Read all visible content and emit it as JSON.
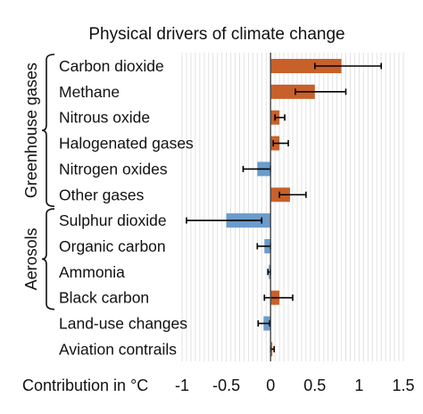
{
  "chart_data": {
    "type": "bar",
    "orientation": "horizontal",
    "title": "Physical drivers of climate change",
    "xlabel": "Contribution in °C",
    "xlim": [
      -1,
      1.5
    ],
    "xticks": [
      -1,
      -0.5,
      0,
      0.5,
      1,
      1.5
    ],
    "xtick_labels": [
      "-1",
      "-0.5",
      "0",
      "0.5",
      "1",
      "1.5"
    ],
    "grid": "vertical",
    "colors": {
      "positive": "#c8602a",
      "negative": "#6b9ccc"
    },
    "groups": [
      {
        "label": "Greenhouse gases",
        "categories": [
          "Carbon dioxide",
          "Methane",
          "Nitrous oxide",
          "Halogenated gases",
          "Nitrogen oxides",
          "Other gases"
        ]
      },
      {
        "label": "Aerosols",
        "categories": [
          "Sulphur dioxide",
          "Organic carbon",
          "Ammonia",
          "Black carbon"
        ]
      }
    ],
    "categories": [
      "Carbon dioxide",
      "Methane",
      "Nitrous oxide",
      "Halogenated gases",
      "Nitrogen oxides",
      "Other gases",
      "Sulphur dioxide",
      "Organic carbon",
      "Ammonia",
      "Black carbon",
      "Land-use changes",
      "Aviation contrails"
    ],
    "values": [
      0.8,
      0.5,
      0.1,
      0.1,
      -0.15,
      0.22,
      -0.5,
      -0.07,
      -0.02,
      0.1,
      -0.08,
      0.02
    ],
    "error_low": [
      0.5,
      0.28,
      0.05,
      0.03,
      -0.31,
      0.1,
      -0.95,
      -0.15,
      -0.03,
      -0.07,
      -0.14,
      0.0
    ],
    "error_high": [
      1.25,
      0.85,
      0.16,
      0.2,
      0.0,
      0.4,
      -0.1,
      0.0,
      0.0,
      0.25,
      -0.01,
      0.04
    ]
  }
}
